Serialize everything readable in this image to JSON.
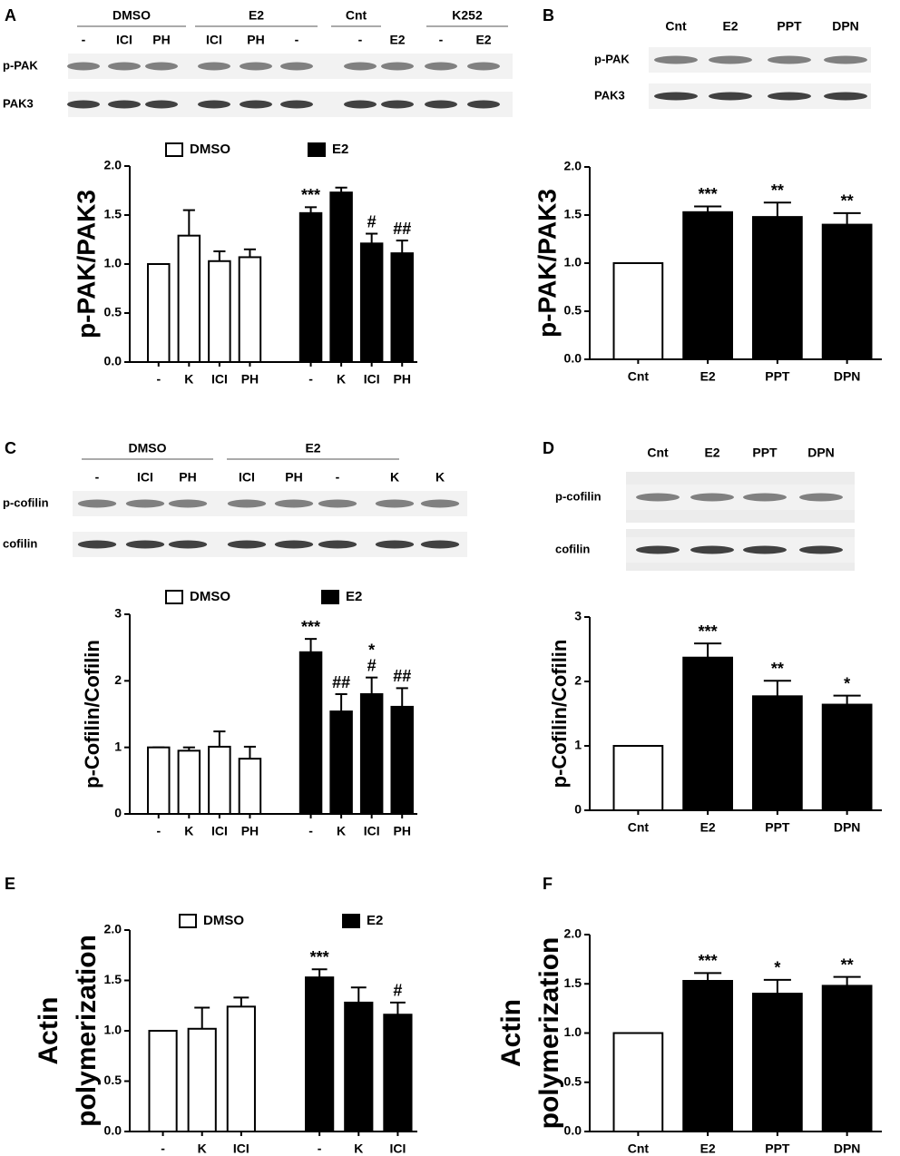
{
  "chart_data": [
    {
      "type": "bar",
      "panel": "A",
      "ylabel": [
        "p-PAK/PAK3"
      ],
      "categories": [
        "-",
        "K",
        "ICI",
        "PH",
        "-",
        "K",
        "ICI",
        "PH"
      ],
      "ylim": [
        0,
        2
      ],
      "yticks": [
        {
          "value": 0,
          "label": "0.0"
        },
        0.5,
        {
          "value": 1,
          "label": "1.0"
        },
        1.5,
        {
          "value": 2,
          "label": "2.0"
        }
      ],
      "series": [
        {
          "name": "DMSO",
          "color": "#ffffff",
          "values": [
            1.0,
            1.29,
            1.03,
            1.07,
            null,
            null,
            null,
            null
          ],
          "errors": [
            0,
            0.26,
            0.1,
            0.08,
            null,
            null,
            null,
            null
          ],
          "annotations": [
            null,
            null,
            null,
            null,
            null,
            null,
            null,
            null
          ]
        },
        {
          "name": "E2",
          "color": "#000000",
          "values": [
            null,
            null,
            null,
            null,
            1.52,
            1.73,
            1.21,
            1.11
          ],
          "errors": [
            null,
            null,
            null,
            null,
            0.06,
            0.05,
            0.1,
            0.13
          ],
          "annotations": [
            null,
            null,
            null,
            null,
            [
              "***"
            ],
            null,
            [
              "#"
            ],
            [
              "##"
            ]
          ]
        }
      ]
    },
    {
      "type": "bar",
      "panel": "B",
      "ylabel": [
        "p-PAK/PAK3"
      ],
      "categories": [
        "Cnt",
        "E2",
        "PPT",
        "DPN"
      ],
      "ylim": [
        0,
        2
      ],
      "yticks": [
        {
          "value": 0,
          "label": "0.0"
        },
        0.5,
        {
          "value": 1,
          "label": "1.0"
        },
        1.5,
        {
          "value": 2,
          "label": "2.0"
        }
      ],
      "series": [
        {
          "colors": [
            "#ffffff",
            "#000000",
            "#000000",
            "#000000"
          ],
          "values": [
            1.0,
            1.53,
            1.48,
            1.4
          ],
          "errors": [
            0,
            0.06,
            0.15,
            0.12
          ],
          "annotations": [
            null,
            [
              "***"
            ],
            [
              "**"
            ],
            [
              "**"
            ]
          ]
        }
      ]
    },
    {
      "type": "bar",
      "panel": "C",
      "ylabel": [
        "p-Cofilin/Cofilin"
      ],
      "categories": [
        "-",
        "K",
        "ICI",
        "PH",
        "-",
        "K",
        "ICI",
        "PH"
      ],
      "ylim": [
        0,
        3
      ],
      "yticks": [
        0,
        1,
        2,
        3
      ],
      "series": [
        {
          "name": "DMSO",
          "color": "#ffffff",
          "values": [
            1.0,
            0.95,
            1.01,
            0.83,
            null,
            null,
            null,
            null
          ],
          "errors": [
            0,
            0.05,
            0.23,
            0.18,
            null,
            null,
            null,
            null
          ],
          "annotations": [
            null,
            null,
            null,
            null,
            null,
            null,
            null,
            null
          ]
        },
        {
          "name": "E2",
          "color": "#000000",
          "values": [
            null,
            null,
            null,
            null,
            2.43,
            1.54,
            1.8,
            1.61
          ],
          "errors": [
            null,
            null,
            null,
            null,
            0.2,
            0.26,
            0.25,
            0.28
          ],
          "annotations": [
            null,
            null,
            null,
            null,
            [
              "***"
            ],
            [
              "##"
            ],
            [
              "*",
              "#"
            ],
            [
              "##"
            ]
          ]
        }
      ]
    },
    {
      "type": "bar",
      "panel": "D",
      "ylabel": [
        "p-Cofilin/Cofilin"
      ],
      "categories": [
        "Cnt",
        "E2",
        "PPT",
        "DPN"
      ],
      "ylim": [
        0,
        3
      ],
      "yticks": [
        0,
        1,
        2,
        3
      ],
      "series": [
        {
          "colors": [
            "#ffffff",
            "#000000",
            "#000000",
            "#000000"
          ],
          "values": [
            1.0,
            2.37,
            1.77,
            1.64
          ],
          "errors": [
            0,
            0.22,
            0.24,
            0.14
          ],
          "annotations": [
            null,
            [
              "***"
            ],
            [
              "**"
            ],
            [
              "*"
            ]
          ]
        }
      ]
    },
    {
      "type": "bar",
      "panel": "E",
      "ylabel": [
        "Actin",
        "polymerization"
      ],
      "categories": [
        "-",
        "K",
        "ICI",
        "-",
        "K",
        "ICI"
      ],
      "ylim": [
        0,
        2
      ],
      "yticks": [
        {
          "value": 0,
          "label": "0.0"
        },
        0.5,
        {
          "value": 1,
          "label": "1.0"
        },
        1.5,
        {
          "value": 2,
          "label": "2.0"
        }
      ],
      "series": [
        {
          "name": "DMSO",
          "color": "#ffffff",
          "values": [
            1.0,
            1.02,
            1.24,
            null,
            null,
            null
          ],
          "errors": [
            0,
            0.21,
            0.09,
            null,
            null,
            null
          ],
          "annotations": [
            null,
            null,
            null,
            null,
            null,
            null
          ]
        },
        {
          "name": "E2",
          "color": "#000000",
          "values": [
            null,
            null,
            null,
            1.53,
            1.28,
            1.16
          ],
          "errors": [
            null,
            null,
            null,
            0.08,
            0.15,
            0.12
          ],
          "annotations": [
            null,
            null,
            null,
            [
              "***"
            ],
            null,
            [
              "#"
            ]
          ]
        }
      ]
    },
    {
      "type": "bar",
      "panel": "F",
      "ylabel": [
        "Actin",
        "polymerization"
      ],
      "categories": [
        "Cnt",
        "E2",
        "PPT",
        "DPN"
      ],
      "ylim": [
        0,
        2
      ],
      "yticks": [
        {
          "value": 0,
          "label": "0.0"
        },
        0.5,
        {
          "value": 1,
          "label": "1.0"
        },
        1.5,
        {
          "value": 2,
          "label": "2.0"
        }
      ],
      "series": [
        {
          "colors": [
            "#ffffff",
            "#000000",
            "#000000",
            "#000000"
          ],
          "values": [
            1.0,
            1.53,
            1.4,
            1.48
          ],
          "errors": [
            0,
            0.08,
            0.14,
            0.09
          ],
          "annotations": [
            null,
            [
              "***"
            ],
            [
              "*"
            ],
            [
              "**"
            ]
          ]
        }
      ]
    }
  ],
  "blots": [
    {
      "groups": [
        "DMSO",
        "E2",
        "Cnt",
        "K252"
      ],
      "lanes": [
        "-",
        "ICI",
        "PH",
        "ICI",
        "PH",
        "-",
        "-",
        "E2",
        "-",
        "E2"
      ],
      "rows": [
        "p-PAK",
        "PAK3"
      ]
    },
    {
      "groups": [],
      "lanes": [
        "Cnt",
        "E2",
        "PPT",
        "DPN"
      ],
      "rows": [
        "p-PAK",
        "PAK3"
      ]
    },
    {
      "groups": [
        "DMSO",
        "E2"
      ],
      "lanes": [
        "-",
        "ICI",
        "PH",
        "ICI",
        "PH",
        "-",
        "K",
        "K"
      ],
      "rows": [
        "p-cofilin",
        "cofilin"
      ]
    },
    {
      "groups": [],
      "lanes": [
        "Cnt",
        "E2",
        "PPT",
        "DPN"
      ],
      "rows": [
        "p-cofilin",
        "cofilin"
      ]
    }
  ]
}
